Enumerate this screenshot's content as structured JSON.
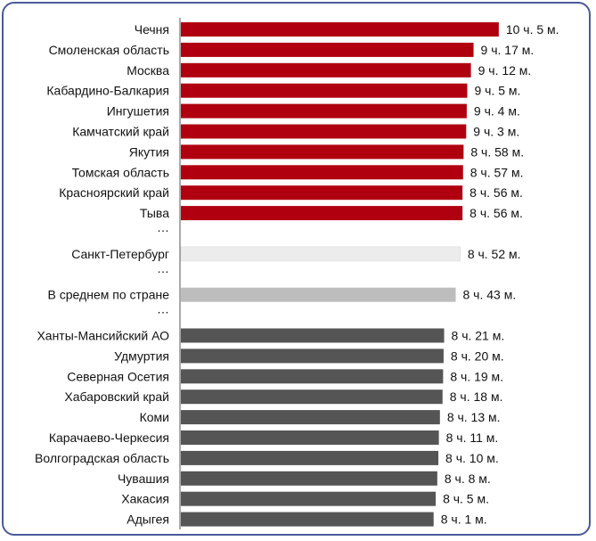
{
  "chart_data": {
    "type": "bar",
    "orientation": "horizontal",
    "title": "",
    "xlabel": "",
    "ylabel": "",
    "grid": false,
    "xlim": [
      0,
      10.2
    ],
    "rows": [
      {
        "kind": "bar",
        "category": "Чечня",
        "value": 10.083,
        "label": "10 ч. 5 м.",
        "group": "top"
      },
      {
        "kind": "bar",
        "category": "Смоленская область",
        "value": 9.283,
        "label": "9 ч. 17 м.",
        "group": "top"
      },
      {
        "kind": "bar",
        "category": "Москва",
        "value": 9.2,
        "label": "9 ч. 12 м.",
        "group": "top"
      },
      {
        "kind": "bar",
        "category": "Кабардино-Балкария",
        "value": 9.083,
        "label": "9 ч. 5 м.",
        "group": "top"
      },
      {
        "kind": "bar",
        "category": "Ингушетия",
        "value": 9.067,
        "label": "9 ч. 4 м.",
        "group": "top"
      },
      {
        "kind": "bar",
        "category": "Камчатский край",
        "value": 9.05,
        "label": "9 ч. 3 м.",
        "group": "top"
      },
      {
        "kind": "bar",
        "category": "Якутия",
        "value": 8.967,
        "label": "8 ч. 58 м.",
        "group": "top"
      },
      {
        "kind": "bar",
        "category": "Томская область",
        "value": 8.95,
        "label": "8 ч. 57 м.",
        "group": "top"
      },
      {
        "kind": "bar",
        "category": "Красноярский край",
        "value": 8.933,
        "label": "8 ч. 56 м.",
        "group": "top"
      },
      {
        "kind": "bar",
        "category": "Тыва",
        "value": 8.933,
        "label": "8 ч. 56 м.",
        "group": "top"
      },
      {
        "kind": "gap",
        "text": "…"
      },
      {
        "kind": "bar",
        "category": "Санкт-Петербург",
        "value": 8.867,
        "label": "8 ч. 52 м.",
        "group": "spb"
      },
      {
        "kind": "gap",
        "text": "…"
      },
      {
        "kind": "bar",
        "category": "В среднем по стране",
        "value": 8.717,
        "label": "8 ч. 43 м.",
        "group": "avg"
      },
      {
        "kind": "gap",
        "text": "…"
      },
      {
        "kind": "bar",
        "category": "Ханты-Мансийский АО",
        "value": 8.35,
        "label": "8 ч. 21 м.",
        "group": "bottom"
      },
      {
        "kind": "bar",
        "category": "Удмуртия",
        "value": 8.333,
        "label": "8 ч. 20 м.",
        "group": "bottom"
      },
      {
        "kind": "bar",
        "category": "Северная Осетия",
        "value": 8.317,
        "label": "8 ч. 19 м.",
        "group": "bottom"
      },
      {
        "kind": "bar",
        "category": "Хабаровский край",
        "value": 8.3,
        "label": "8 ч. 18 м.",
        "group": "bottom"
      },
      {
        "kind": "bar",
        "category": "Коми",
        "value": 8.217,
        "label": "8 ч. 13 м.",
        "group": "bottom"
      },
      {
        "kind": "bar",
        "category": "Карачаево-Черкесия",
        "value": 8.183,
        "label": "8 ч. 11 м.",
        "group": "bottom"
      },
      {
        "kind": "bar",
        "category": "Волгоградская область",
        "value": 8.167,
        "label": "8 ч. 10 м.",
        "group": "bottom"
      },
      {
        "kind": "bar",
        "category": "Чувашия",
        "value": 8.133,
        "label": "8 ч. 8 м.",
        "group": "bottom"
      },
      {
        "kind": "bar",
        "category": "Хакасия",
        "value": 8.083,
        "label": "8 ч. 5 м.",
        "group": "bottom"
      },
      {
        "kind": "bar",
        "category": "Адыгея",
        "value": 8.017,
        "label": "8 ч. 1 м.",
        "group": "bottom"
      }
    ],
    "colors": {
      "top": "#b0000f",
      "spb": "#ececec",
      "avg": "#bdbdbd",
      "bottom": "#555555",
      "axis": "#555555",
      "frame": "#4a5a9a"
    }
  }
}
